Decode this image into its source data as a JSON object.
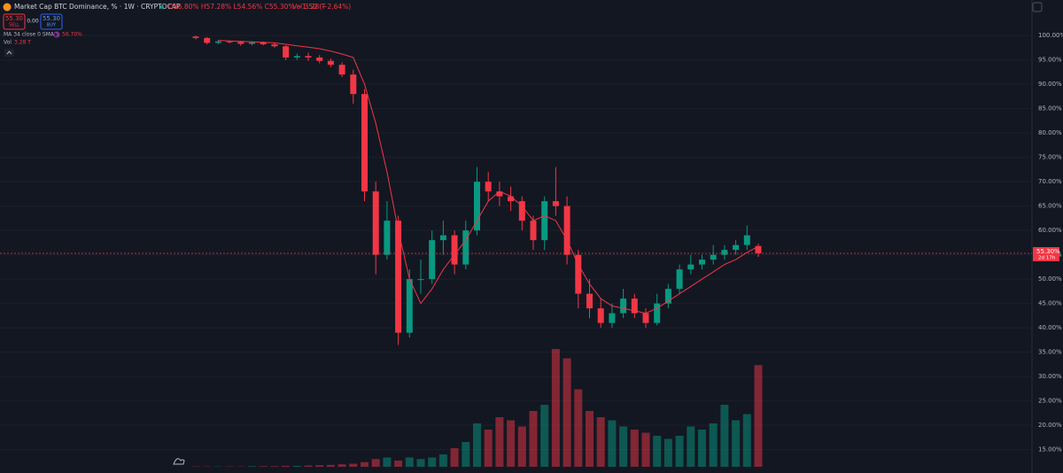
{
  "header": {
    "title": "Market Cap BTC Dominance, % · 1W · CRYPTOCAP",
    "ohlc": "O56.80% H57.28% L54.56% C55.30% −1.50 (−2.64%)",
    "vol": "Vol 3.28 T",
    "sell_price": "55.30",
    "sell": "SELL",
    "spread": "0.00",
    "buy_price": "55.30",
    "buy": "BUY",
    "ma_legend": "MA 34 close 0 SMA 5",
    "ma_value": "56.70%",
    "vol_legend": "Vol",
    "vol_value": "3.28 T"
  },
  "chart_data": {
    "type": "candlestick",
    "open": [
      99.8,
      99.5,
      98.5,
      98.8,
      98.7,
      98.3,
      98.6,
      98.2,
      97.8,
      95.5,
      95.8,
      95.5,
      94.8,
      94,
      92,
      88,
      68,
      55,
      62,
      39,
      50,
      50,
      58,
      59,
      53,
      60,
      70,
      68,
      67,
      66,
      62,
      58,
      66,
      65,
      55,
      47,
      44,
      41,
      43,
      46,
      43,
      41,
      45,
      48,
      52,
      53,
      54,
      55,
      56,
      57,
      56.8
    ],
    "high": [
      100,
      99.7,
      99.1,
      99,
      98.9,
      98.8,
      98.8,
      98.5,
      98,
      96.3,
      96.5,
      96,
      95.3,
      94.5,
      93,
      89,
      70,
      66,
      63,
      52,
      54,
      60,
      62,
      60,
      62,
      73,
      72,
      70,
      69,
      67,
      63,
      67,
      73,
      67,
      56,
      50,
      46,
      45,
      48,
      47,
      44,
      47,
      49,
      53,
      55,
      55,
      57,
      57,
      58,
      61,
      57.28
    ],
    "low": [
      99.2,
      98.2,
      98.2,
      98.4,
      97.9,
      98,
      98,
      97.5,
      95,
      95,
      94.8,
      94.3,
      93.5,
      91.5,
      86,
      66,
      51,
      54,
      36.5,
      38,
      47,
      49,
      55,
      51,
      52,
      59,
      66,
      65,
      64,
      60,
      56,
      56,
      63,
      53,
      44,
      42,
      40,
      40,
      42,
      42,
      40,
      40.5,
      44,
      47,
      51,
      52,
      53,
      54,
      55,
      56,
      54.56
    ],
    "close": [
      99.5,
      98.5,
      98.8,
      98.7,
      98.3,
      98.6,
      98.2,
      97.8,
      95.5,
      95.8,
      95.5,
      94.8,
      94,
      92,
      88,
      68,
      55,
      62,
      39,
      50,
      50,
      58,
      59,
      53,
      60,
      70,
      68,
      67,
      66,
      62,
      58,
      66,
      65,
      55,
      47,
      44,
      41,
      43,
      46,
      43,
      41,
      45,
      48,
      52,
      53,
      54,
      55,
      56,
      57,
      59,
      55.3
    ],
    "ma": [
      null,
      null,
      99,
      98.9,
      98.8,
      98.7,
      98.6,
      98.5,
      98.2,
      97.9,
      97.6,
      97.3,
      96.8,
      96.2,
      95.5,
      90,
      82,
      72,
      60,
      50,
      45,
      48,
      52,
      55,
      58,
      62,
      66,
      68,
      67,
      65,
      62,
      63,
      62,
      58,
      53,
      49,
      46,
      44.5,
      44,
      43.5,
      43,
      44,
      45.5,
      47,
      48.5,
      50,
      51.5,
      53,
      54,
      55.5,
      56.7
    ],
    "volume": [
      0.01,
      0.01,
      0.01,
      0.01,
      0.01,
      0.02,
      0.02,
      0.02,
      0.03,
      0.03,
      0.04,
      0.05,
      0.06,
      0.08,
      0.1,
      0.15,
      0.25,
      0.3,
      0.2,
      0.3,
      0.25,
      0.3,
      0.4,
      0.6,
      0.8,
      1.4,
      1.2,
      1.6,
      1.5,
      1.3,
      1.8,
      2.0,
      3.8,
      3.5,
      2.5,
      1.8,
      1.6,
      1.5,
      1.3,
      1.2,
      1.1,
      1.0,
      0.9,
      1.0,
      1.3,
      1.2,
      1.4,
      2.0,
      1.5,
      1.7,
      3.28
    ],
    "up_color": "#089981",
    "down_color": "#f23645",
    "ma_color": "#f23645",
    "ylim": [
      10.2,
      107.3
    ],
    "yticks": [
      {
        "value": 100,
        "label": "100.00%"
      },
      {
        "value": 95,
        "label": "95.00%"
      },
      {
        "value": 90,
        "label": "90.00%"
      },
      {
        "value": 85,
        "label": "85.00%"
      },
      {
        "value": 80,
        "label": "80.00%"
      },
      {
        "value": 75,
        "label": "75.00%"
      },
      {
        "value": 70,
        "label": "70.00%"
      },
      {
        "value": 65,
        "label": "65.00%"
      },
      {
        "value": 60,
        "label": "60.00%"
      },
      {
        "value": 55,
        "label": "55.00%"
      },
      {
        "value": 50,
        "label": "50.00%"
      },
      {
        "value": 45,
        "label": "45.00%"
      },
      {
        "value": 40,
        "label": "40.00%"
      },
      {
        "value": 35,
        "label": "35.00%"
      },
      {
        "value": 30,
        "label": "30.00%"
      },
      {
        "value": 25,
        "label": "25.00%"
      },
      {
        "value": 20,
        "label": "20.00%"
      },
      {
        "value": 15,
        "label": "15.00%"
      }
    ],
    "vlim": [
      0,
      4
    ],
    "last_price_label": "55.30%",
    "countdown": "2d 17h",
    "grid": true
  }
}
